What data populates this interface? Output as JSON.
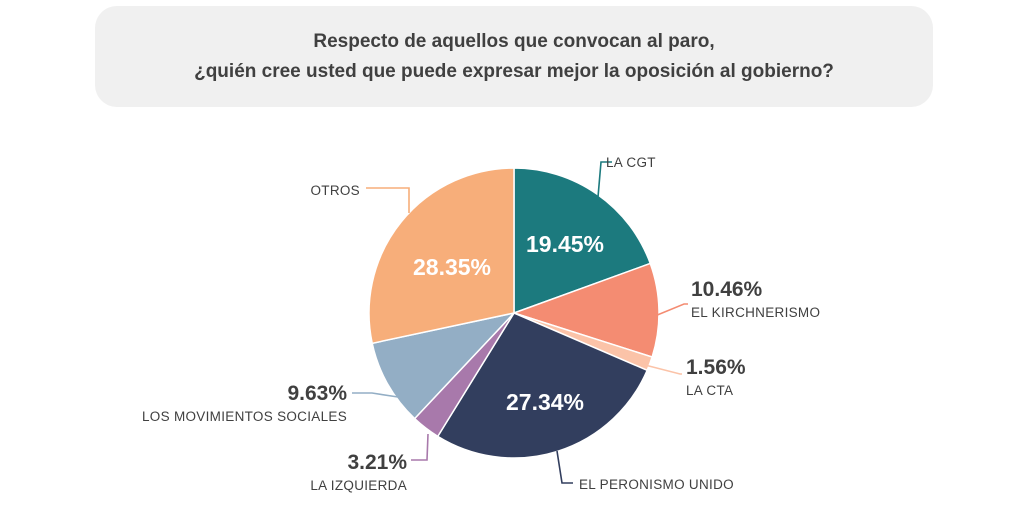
{
  "title": {
    "line1": "Respecto de aquellos que convocan al paro,",
    "line2": "¿quién cree usted que puede expresar mejor la oposición al gobierno?"
  },
  "chart_data": {
    "type": "pie",
    "slices": [
      {
        "label": "LA CGT",
        "value": 19.45,
        "value_text": "19.45%",
        "color": "#1c7a7e"
      },
      {
        "label": "EL KIRCHNERISMO",
        "value": 10.46,
        "value_text": "10.46%",
        "color": "#f48c72"
      },
      {
        "label": "LA CTA",
        "value": 1.56,
        "value_text": "1.56%",
        "color": "#fbc3a8"
      },
      {
        "label": "EL PERONISMO UNIDO",
        "value": 27.34,
        "value_text": "27.34%",
        "color": "#323e5e"
      },
      {
        "label": "LA IZQUIERDA",
        "value": 3.21,
        "value_text": "3.21%",
        "color": "#a879ab"
      },
      {
        "label": "LOS MOVIMIENTOS SOCIALES",
        "value": 9.63,
        "value_text": "9.63%",
        "color": "#93aec5"
      },
      {
        "label": "OTROS",
        "value": 28.35,
        "value_text": "28.35%",
        "color": "#f7ae7a"
      }
    ]
  }
}
